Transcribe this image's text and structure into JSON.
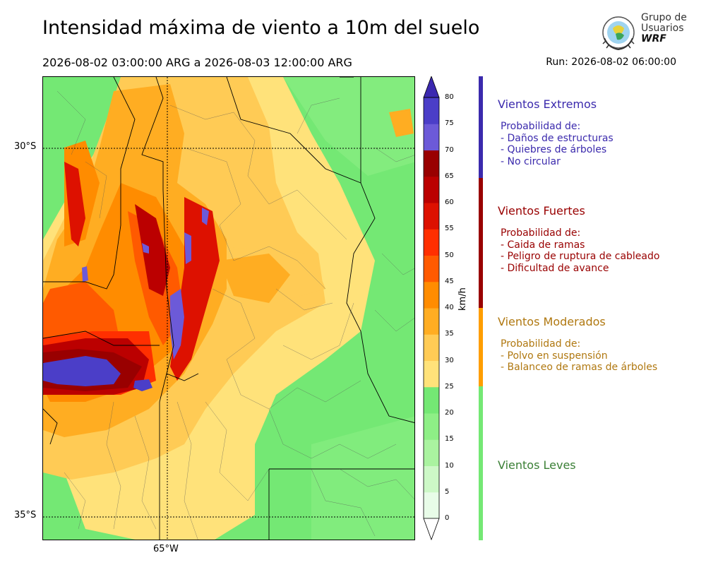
{
  "header": {
    "title": "Intensidad máxima de viento a 10m del suelo",
    "period": "2026-08-02 03:00:00 ARG  a  2026-08-03 12:00:00 ARG",
    "run": "Run: 2026-08-02 06:00:00"
  },
  "logo": {
    "line1": "Grupo de",
    "line2": "Usuarios",
    "line3": "WRF"
  },
  "map": {
    "lat_labels": [
      "30°S",
      "35°S"
    ],
    "lon_labels": [
      "65°W"
    ]
  },
  "colorbar": {
    "unit": "km/h",
    "ticks": [
      0,
      5,
      10,
      15,
      20,
      25,
      30,
      35,
      40,
      45,
      50,
      55,
      60,
      65,
      70,
      75,
      80
    ],
    "colors": [
      "#e8fce8",
      "#cdf8c7",
      "#aaf3a0",
      "#8eef86",
      "#74e874",
      "#ffe27a",
      "#ffcb55",
      "#ffad22",
      "#ff8c00",
      "#ff5a00",
      "#ff2f00",
      "#dd1100",
      "#bb0000",
      "#990000",
      "#6c5ad8",
      "#4b3ec8",
      "#3b28b0"
    ],
    "range": [
      0,
      80
    ]
  },
  "categories": [
    {
      "title": "Vientos Extremos",
      "color": "#3b2aad",
      "lines": [
        "Probabilidad de:",
        "- Daños de estructuras",
        "- Quiebres de árboles",
        "- No circular"
      ]
    },
    {
      "title": "Vientos Fuertes",
      "color": "#990000",
      "lines": [
        "Probabilidad de:",
        "- Caida de ramas",
        "- Peligro de ruptura de cableado",
        "- Dificultad de avance"
      ]
    },
    {
      "title": "Vientos Moderados",
      "color": "#b07810",
      "lines": [
        "Probabilidad de:",
        "- Polvo en suspensión",
        "- Balanceo de ramas de árboles"
      ]
    },
    {
      "title": "Vientos Leves",
      "color": "#3a7f35",
      "lines": []
    }
  ],
  "legend_bar_colors": [
    "#3b2aad",
    "#990000",
    "#ff9e00",
    "#74e874"
  ]
}
